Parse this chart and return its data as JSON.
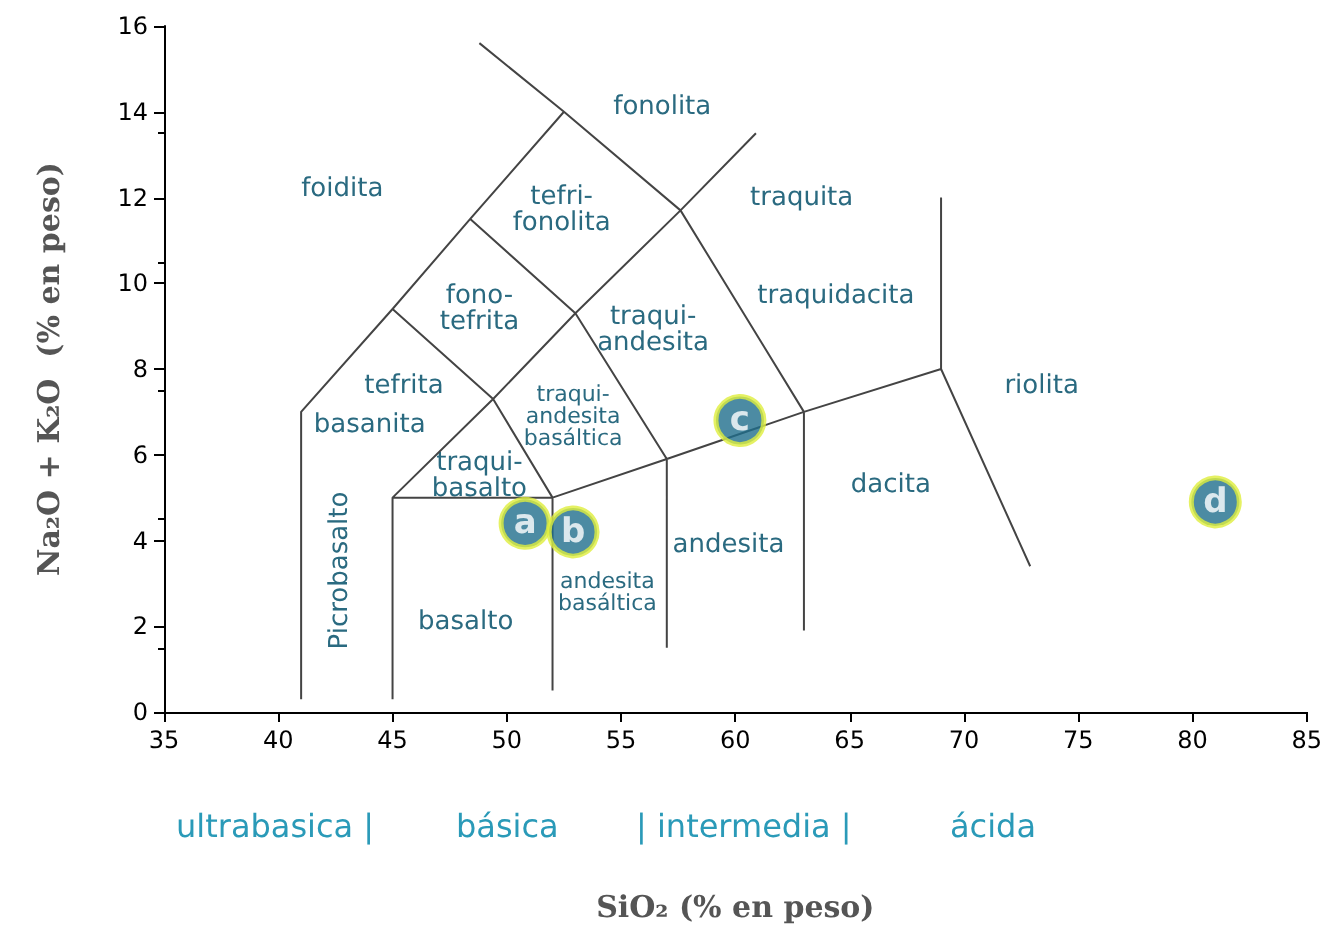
{
  "chart_data": {
    "type": "scatter",
    "xlabel": "SiO₂ (% en peso)",
    "ylabel": "Na₂O + K₂O  (% en peso)",
    "xlim": [
      35,
      85
    ],
    "xticks": [
      35,
      40,
      45,
      50,
      55,
      60,
      65,
      70,
      75,
      80,
      85
    ],
    "ylim": [
      0,
      16
    ],
    "yticks": [
      0,
      2,
      4,
      6,
      8,
      10,
      12,
      14,
      16
    ],
    "grid": false,
    "legend": false,
    "series": [
      {
        "type": "line",
        "color": "#444444",
        "x": [
          41,
          41,
          45,
          48.4,
          52.5,
          48.8,
          null,
          52.5,
          57.6,
          63,
          null,
          57.6,
          60.9,
          null,
          45,
          45,
          52,
          57,
          63,
          69,
          69,
          null,
          69,
          72.9,
          null,
          52,
          52,
          null,
          57,
          57,
          null,
          63,
          63,
          null,
          45,
          49.4,
          53,
          57.6,
          null,
          45,
          49.4,
          52,
          null,
          48.4,
          53,
          57
        ],
        "values": [
          0.3,
          7,
          9.4,
          11.5,
          14,
          15.6,
          null,
          14,
          11.7,
          7,
          null,
          11.7,
          13.5,
          null,
          0.3,
          5,
          5,
          5.9,
          7,
          8,
          12,
          null,
          8,
          3.4,
          null,
          0.5,
          5,
          null,
          1.5,
          5.9,
          null,
          1.9,
          7,
          null,
          5,
          7.3,
          9.3,
          11.7,
          null,
          9.4,
          7.3,
          5,
          null,
          11.5,
          9.3,
          5.9
        ]
      },
      {
        "name": "a",
        "color": "#1f6e8c",
        "x": [
          50.8
        ],
        "values": [
          4.4
        ]
      },
      {
        "name": "b",
        "color": "#1f6e8c",
        "x": [
          52.9
        ],
        "values": [
          4.2
        ]
      },
      {
        "name": "c",
        "color": "#1f6e8c",
        "x": [
          60.2
        ],
        "values": [
          6.8
        ]
      },
      {
        "name": "d",
        "color": "#1f6e8c",
        "x": [
          81
        ],
        "values": [
          4.9
        ]
      }
    ],
    "annotations": [
      "Picrobasalto",
      "fonolita",
      "foidita",
      "tefri-\nfonolita",
      "traquita",
      "fono-\ntefrita",
      "traqui-\nandesita",
      "traquidacita",
      "tefrita",
      "basanita",
      "traqui-\nandesita\nbasáltica",
      "traqui-\nbasalto",
      "dacita",
      "riolita",
      "andesita",
      "basalto",
      "andesita\nbasáltica",
      "ultrabasica |",
      "básica",
      "| intermedia |",
      "ácida"
    ]
  }
}
